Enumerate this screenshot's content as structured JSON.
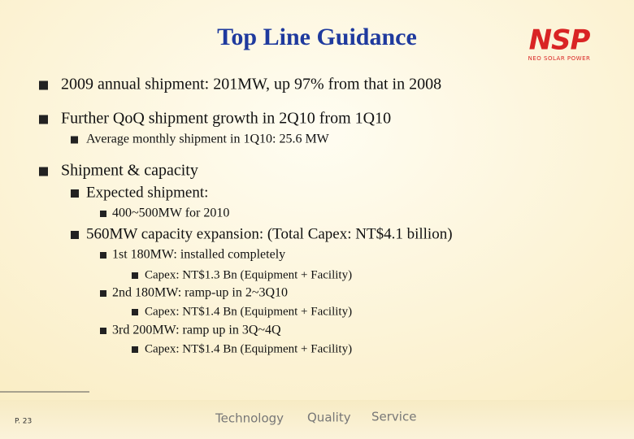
{
  "header": {
    "title": "Top Line Guidance"
  },
  "logo": {
    "name": "NSP",
    "tagline": "NEO SOLAR POWER"
  },
  "bullets": [
    "2009 annual shipment: 201MW, up 97% from that in 2008",
    "Further QoQ shipment growth in 2Q10 from 1Q10",
    "Average monthly shipment in 1Q10: 25.6 MW",
    "Shipment & capacity",
    "Expected shipment:",
    "400~500MW for 2010",
    "560MW capacity expansion: (Total Capex: NT$4.1 billion)",
    "1st 180MW: installed completely",
    "Capex: NT$1.3 Bn (Equipment + Facility)",
    "2nd 180MW: ramp-up in 2~3Q10",
    "Capex: NT$1.4 Bn (Equipment + Facility)",
    "3rd 200MW: ramp up in 3Q~4Q",
    "Capex: NT$1.4 Bn (Equipment + Facility)"
  ],
  "footer": {
    "page": "P. 23",
    "values": [
      "Technology",
      "Quality",
      "Service"
    ]
  }
}
